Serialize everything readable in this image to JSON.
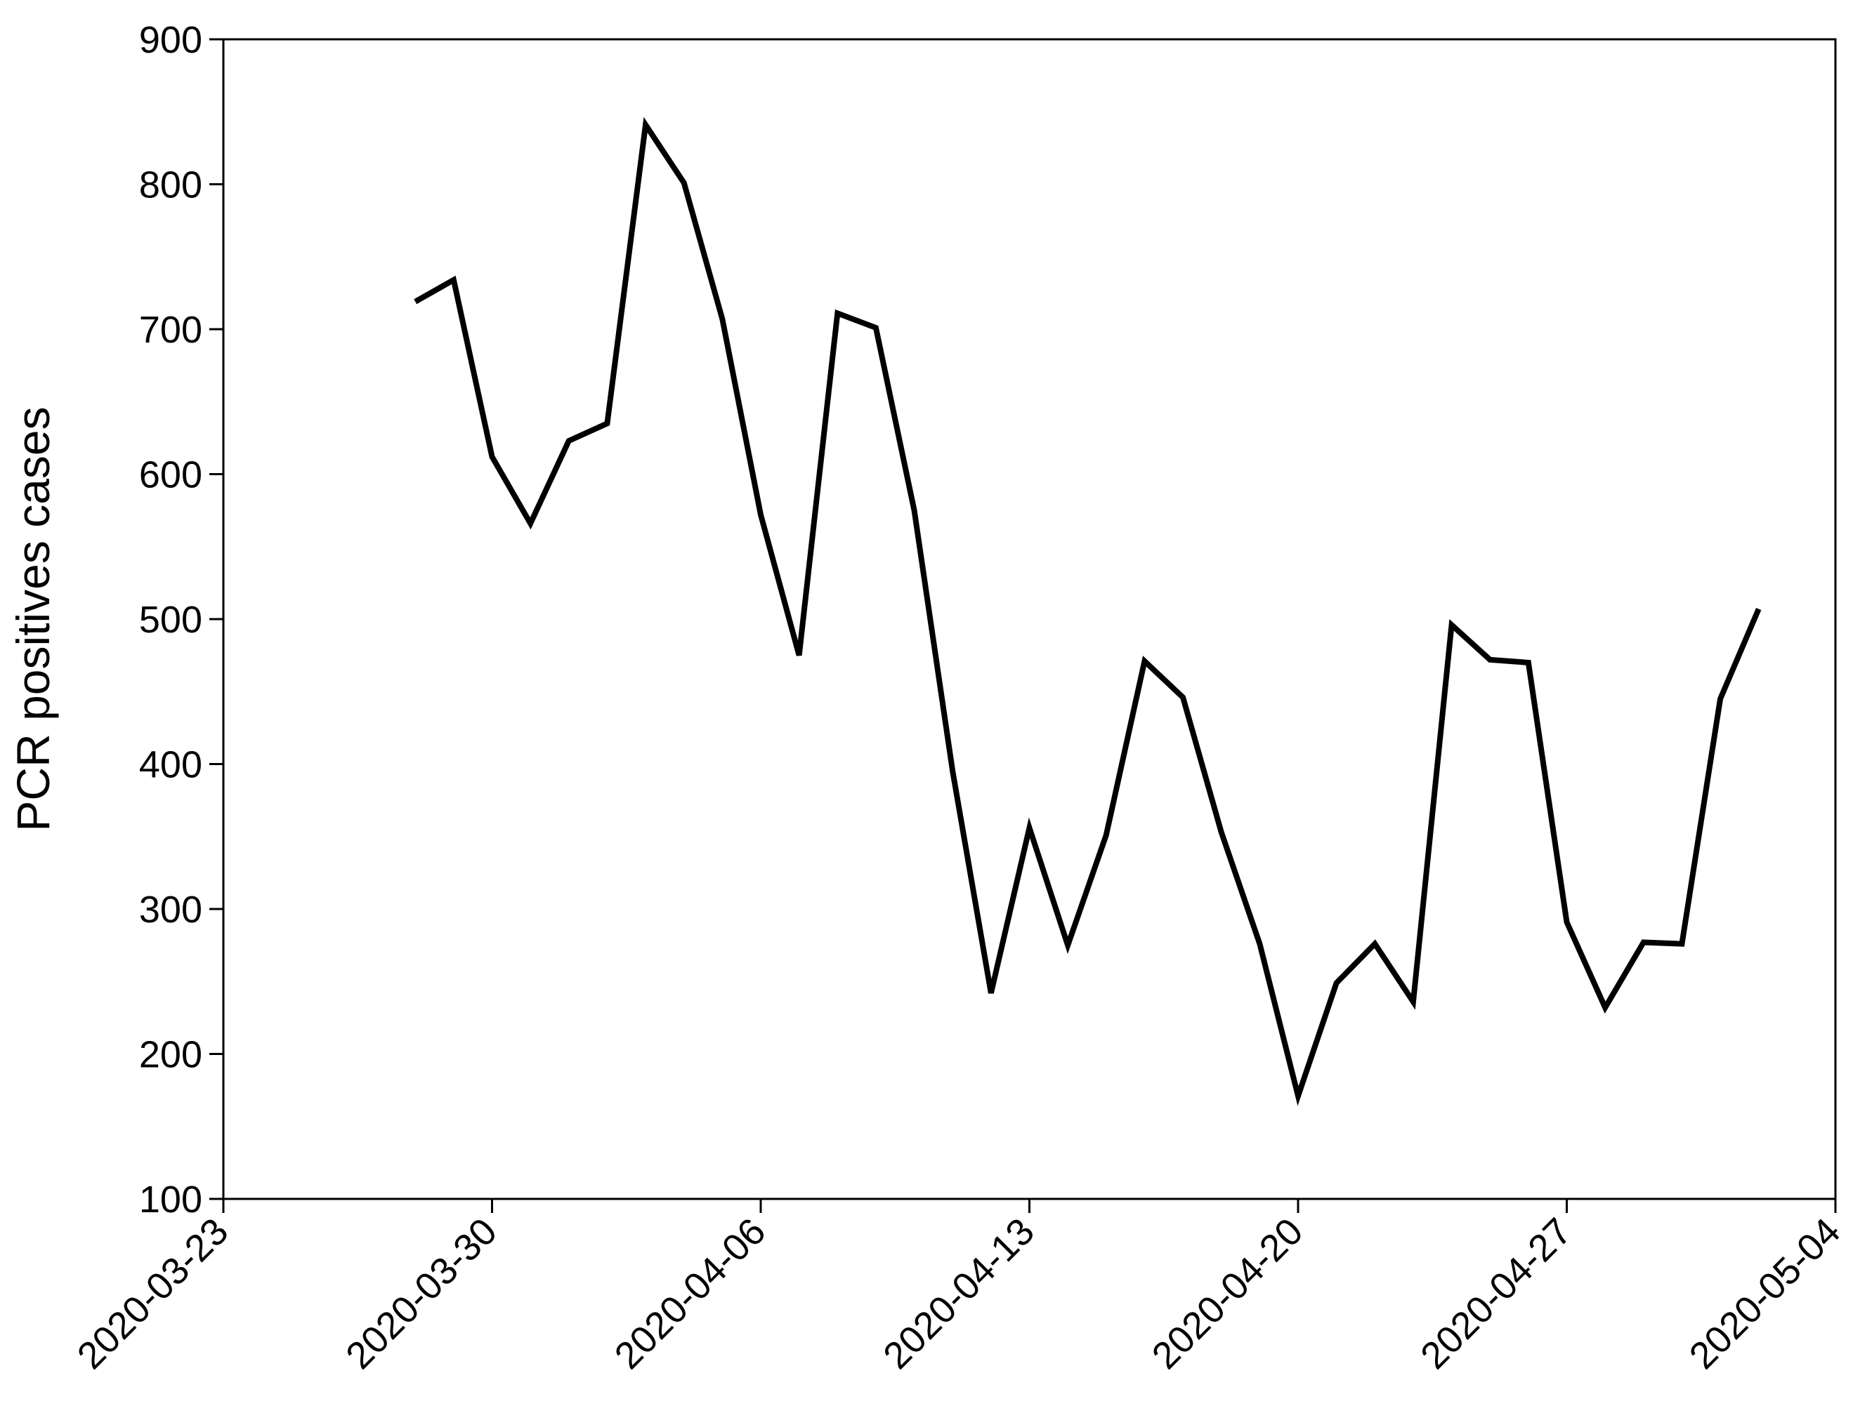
{
  "chart_data": {
    "type": "line",
    "y_label": "PCR positives cases",
    "x": [
      "2020-03-28",
      "2020-03-29",
      "2020-03-30",
      "2020-03-31",
      "2020-04-01",
      "2020-04-02",
      "2020-04-03",
      "2020-04-04",
      "2020-04-05",
      "2020-04-06",
      "2020-04-07",
      "2020-04-08",
      "2020-04-09",
      "2020-04-10",
      "2020-04-11",
      "2020-04-12",
      "2020-04-13",
      "2020-04-14",
      "2020-04-15",
      "2020-04-16",
      "2020-04-17",
      "2020-04-18",
      "2020-04-19",
      "2020-04-20",
      "2020-04-21",
      "2020-04-22",
      "2020-04-23",
      "2020-04-24",
      "2020-04-25",
      "2020-04-26",
      "2020-04-27",
      "2020-04-28",
      "2020-04-29",
      "2020-04-30",
      "2020-05-01",
      "2020-05-02"
    ],
    "series": [
      {
        "name": "PCR positives cases",
        "color": "#000000",
        "values": [
          719,
          734,
          612,
          566,
          623,
          635,
          841,
          801,
          707,
          572,
          475,
          711,
          701,
          575,
          395,
          242,
          356,
          275,
          351,
          471,
          446,
          353,
          276,
          171,
          249,
          276,
          236,
          496,
          472,
          470,
          291,
          232,
          277,
          276,
          445,
          507
        ]
      }
    ],
    "xlim": [
      "2020-03-23",
      "2020-05-04"
    ],
    "xticks": [
      "2020-03-23",
      "2020-03-30",
      "2020-04-06",
      "2020-04-13",
      "2020-04-20",
      "2020-04-27",
      "2020-05-04"
    ],
    "ylim": [
      100,
      900
    ],
    "yticks": [
      100,
      200,
      300,
      400,
      500,
      600,
      700,
      800,
      900
    ],
    "grid": false
  }
}
